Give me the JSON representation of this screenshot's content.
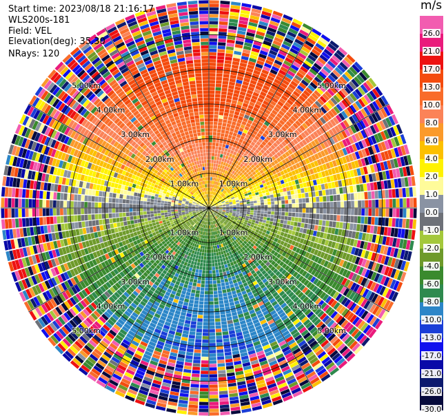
{
  "header": {
    "start_time": "Start time: 2023/08/18 21:16:17",
    "instrument": "WLS200s-181",
    "field": "Field: VEL",
    "elevation": "Elevation(deg): 35.30",
    "nrays": "NRays: 120"
  },
  "colorbar": {
    "unit": "m/s",
    "ticks": [
      "26.0",
      "21.0",
      "17.0",
      "13.0",
      "10.0",
      "8.0",
      "6.0",
      "4.0",
      "2.0",
      "1.0",
      "0.0",
      "-1.0",
      "-2.0",
      "-4.0",
      "-6.0",
      "-8.0",
      "-10.0",
      "-13.0",
      "-17.0",
      "-21.0",
      "-26.0",
      "-30.0"
    ],
    "bands": [
      {
        "from": 26.0,
        "to": 30.0,
        "color": "#f25cb0"
      },
      {
        "from": 21.0,
        "to": 26.0,
        "color": "#ea1b7c"
      },
      {
        "from": 17.0,
        "to": 21.0,
        "color": "#ee1111"
      },
      {
        "from": 13.0,
        "to": 17.0,
        "color": "#f44b0e"
      },
      {
        "from": 10.0,
        "to": 13.0,
        "color": "#f96c2a"
      },
      {
        "from": 8.0,
        "to": 10.0,
        "color": "#fb8358"
      },
      {
        "from": 6.0,
        "to": 8.0,
        "color": "#fb9a2a"
      },
      {
        "from": 4.0,
        "to": 6.0,
        "color": "#fcc000"
      },
      {
        "from": 2.0,
        "to": 4.0,
        "color": "#fff200"
      },
      {
        "from": 1.0,
        "to": 2.0,
        "color": "#fffb9a"
      },
      {
        "from": 0.0,
        "to": 1.0,
        "color": "#8a93a3"
      },
      {
        "from": -1.0,
        "to": 0.0,
        "color": "#6e7178"
      },
      {
        "from": -2.0,
        "to": -1.0,
        "color": "#a4c83b"
      },
      {
        "from": -4.0,
        "to": -2.0,
        "color": "#6e9a2a"
      },
      {
        "from": -6.0,
        "to": -4.0,
        "color": "#3a8a2e"
      },
      {
        "from": -8.0,
        "to": -6.0,
        "color": "#2e8a4e"
      },
      {
        "from": -10.0,
        "to": -8.0,
        "color": "#2c86c8"
      },
      {
        "from": -13.0,
        "to": -10.0,
        "color": "#1a3ed8"
      },
      {
        "from": -17.0,
        "to": -13.0,
        "color": "#1010ee"
      },
      {
        "from": -21.0,
        "to": -17.0,
        "color": "#0a0aa8"
      },
      {
        "from": -26.0,
        "to": -21.0,
        "color": "#0c1a6e"
      },
      {
        "from": -30.0,
        "to": -26.0,
        "color": "#060a3c"
      }
    ]
  },
  "chart_data": {
    "type": "heatmap",
    "projection": "polar PPI",
    "field": "VEL",
    "units": "m/s",
    "vmin": -30.0,
    "vmax": 30.0,
    "nrays": 120,
    "max_range_km": 6.0,
    "ring_labels": [
      "1.00km",
      "2.00km",
      "3.00km",
      "4.00km",
      "5.00km"
    ],
    "ring_ranges_km": [
      1,
      2,
      3,
      4,
      5
    ],
    "spoke_angles_deg": [
      0,
      30,
      60,
      90,
      120,
      150,
      180,
      210,
      240,
      270,
      300,
      330
    ],
    "velocity_pattern": {
      "north_sector_kms_to_ms": [
        [
          0,
          4
        ],
        [
          1,
          7
        ],
        [
          2,
          11
        ],
        [
          3,
          14
        ],
        [
          4,
          16
        ],
        [
          5,
          18
        ]
      ],
      "south_sector_kms_to_ms": [
        [
          0,
          -2
        ],
        [
          1,
          -5
        ],
        [
          2,
          -8
        ],
        [
          3,
          -9
        ],
        [
          4,
          -10
        ],
        [
          5,
          -10
        ]
      ],
      "east_west_near_zero": 0.0,
      "noise_begins_km": 4.5
    }
  }
}
